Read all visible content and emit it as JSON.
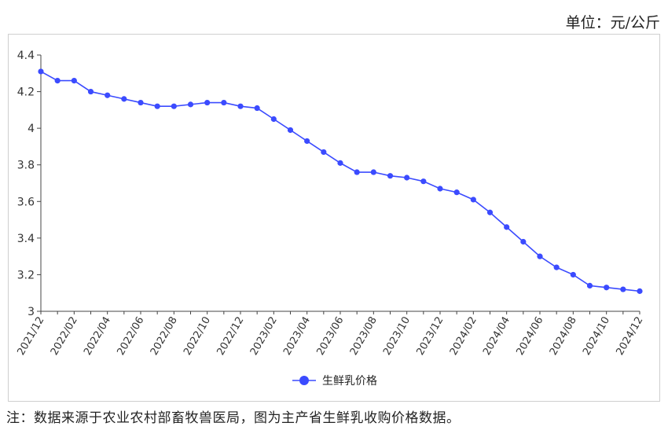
{
  "unit_label": "单位：元/公斤",
  "note": "注：数据来源于农业农村部畜牧兽医局，图为主产省生鲜乳收购价格数据。",
  "colors": {
    "series": "#3b4bff",
    "axis": "#444444",
    "frame": "#cfcfcf"
  },
  "chart_data": {
    "type": "line",
    "ylim": [
      3,
      4.4
    ],
    "yticks": [
      3,
      3.2,
      3.4,
      3.6,
      3.8,
      4,
      4.2,
      4.4
    ],
    "ytick_labels": [
      "3",
      "3.2",
      "3.4",
      "3.6",
      "3.8",
      "4",
      "4.2",
      "4.4"
    ],
    "x": [
      "2021/12",
      "2022/01",
      "2022/02",
      "2022/03",
      "2022/04",
      "2022/05",
      "2022/06",
      "2022/07",
      "2022/08",
      "2022/09",
      "2022/10",
      "2022/11",
      "2022/12",
      "2023/01",
      "2023/02",
      "2023/03",
      "2023/04",
      "2023/05",
      "2023/06",
      "2023/07",
      "2023/08",
      "2023/09",
      "2023/10",
      "2023/11",
      "2023/12",
      "2024/01",
      "2024/02",
      "2024/03",
      "2024/04",
      "2024/05",
      "2024/06",
      "2024/07",
      "2024/08",
      "2024/09",
      "2024/10",
      "2024/11",
      "2024/12"
    ],
    "x_tick_labels": [
      "2021/12",
      "2022/02",
      "2022/04",
      "2022/06",
      "2022/08",
      "2022/10",
      "2022/12",
      "2023/02",
      "2023/04",
      "2023/06",
      "2023/08",
      "2023/10",
      "2023/12",
      "2024/02",
      "2024/04",
      "2024/06",
      "2024/08",
      "2024/10",
      "2024/12"
    ],
    "series": [
      {
        "name": "生鲜乳价格",
        "values": [
          4.31,
          4.26,
          4.26,
          4.2,
          4.18,
          4.16,
          4.14,
          4.12,
          4.12,
          4.13,
          4.14,
          4.14,
          4.12,
          4.11,
          4.05,
          3.99,
          3.93,
          3.87,
          3.81,
          3.76,
          3.76,
          3.74,
          3.73,
          3.71,
          3.67,
          3.65,
          3.61,
          3.54,
          3.46,
          3.38,
          3.3,
          3.24,
          3.2,
          3.14,
          3.13,
          3.12,
          3.11
        ]
      }
    ],
    "legend_position": "bottom-center",
    "grid": false
  }
}
